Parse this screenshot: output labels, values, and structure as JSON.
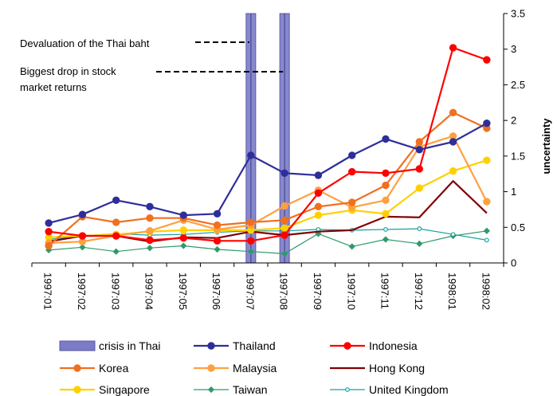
{
  "chart_data": {
    "type": "line",
    "categories": [
      "1997:01",
      "1997:02",
      "1997:03",
      "1997:04",
      "1997:05",
      "1997:06",
      "1997:07",
      "1997:08",
      "1997:09",
      "1997:10",
      "1997:11",
      "1997:12",
      "1998:01",
      "1998:02"
    ],
    "ylabel": "uncertainty",
    "ylim": [
      0,
      3.5
    ],
    "yticks": [
      "0",
      "0.5",
      "1",
      "1.5",
      "2",
      "2.5",
      "3",
      "3.5"
    ],
    "y_axis_side": "right",
    "grid": false,
    "legend_position": "bottom",
    "crisis_bars": {
      "name": "crisis in Thai",
      "color": "#7b7bc8",
      "categories": [
        "1997:07",
        "1997:08"
      ]
    },
    "annotations": [
      {
        "text": "Devaluation of the Thai baht",
        "points_to": "1997:07"
      },
      {
        "text": "Biggest drop in stock\nmarket returns",
        "points_to": "1997:08"
      }
    ],
    "series": [
      {
        "name": "Thailand",
        "color": "#2e2e9a",
        "marker": "circle",
        "values": [
          0.56,
          0.68,
          0.88,
          0.79,
          0.67,
          0.69,
          1.51,
          1.26,
          1.23,
          1.51,
          1.74,
          1.59,
          1.7,
          1.96
        ]
      },
      {
        "name": "Indonesia",
        "color": "#ff0000",
        "marker": "circle",
        "values": [
          0.44,
          0.38,
          0.38,
          0.32,
          0.35,
          0.31,
          0.31,
          0.39,
          0.98,
          1.28,
          1.26,
          1.32,
          3.02,
          2.85
        ]
      },
      {
        "name": "Korea",
        "color": "#f07020",
        "marker": "circle",
        "values": [
          0.24,
          0.65,
          0.57,
          0.63,
          0.63,
          0.53,
          0.57,
          0.6,
          0.79,
          0.85,
          1.09,
          1.7,
          2.11,
          1.89
        ]
      },
      {
        "name": "Malaysia",
        "color": "#ffa040",
        "marker": "circle",
        "values": [
          0.28,
          0.3,
          0.38,
          0.45,
          0.6,
          0.47,
          0.53,
          0.8,
          1.02,
          0.78,
          0.88,
          1.63,
          1.78,
          0.86
        ]
      },
      {
        "name": "Hong Kong",
        "color": "#800000",
        "marker": "none",
        "values": [
          0.3,
          0.38,
          0.38,
          0.3,
          0.36,
          0.35,
          0.44,
          0.39,
          0.44,
          0.46,
          0.65,
          0.64,
          1.15,
          0.7
        ]
      },
      {
        "name": "Singapore",
        "color": "#ffd000",
        "marker": "circle",
        "values": [
          0.36,
          0.38,
          0.4,
          0.44,
          0.46,
          0.46,
          0.46,
          0.49,
          0.67,
          0.74,
          0.69,
          1.05,
          1.29,
          1.44
        ]
      },
      {
        "name": "Taiwan",
        "color": "#2e9a6a",
        "marker": "diamond",
        "values": [
          0.18,
          0.22,
          0.16,
          0.21,
          0.24,
          0.19,
          0.16,
          0.13,
          0.41,
          0.23,
          0.33,
          0.27,
          0.38,
          0.45
        ]
      },
      {
        "name": "United Kingdom",
        "color": "#1aa0a0",
        "marker": "circle-small",
        "values": [
          0.33,
          0.38,
          0.41,
          0.39,
          0.4,
          0.43,
          0.45,
          0.45,
          0.47,
          0.46,
          0.47,
          0.48,
          0.4,
          0.32
        ]
      }
    ]
  }
}
